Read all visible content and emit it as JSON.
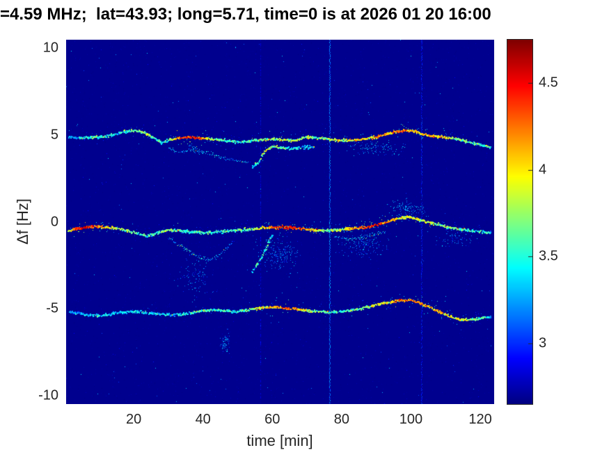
{
  "figure": {
    "title": "=4.59 MHz;  lat=43.93; long=5.71, time=0 is at 2026 01 20 16:00",
    "xlabel": "time [min]",
    "ylabel": "Δf [Hz]",
    "background": "#ffffff",
    "axis_text_color": "#262626"
  },
  "chart_data": {
    "type": "heatmap",
    "subtype": "doppler-spectrogram",
    "title": "=4.59 MHz;  lat=43.93; long=5.71, time=0 is at 2026 01 20 16:00",
    "xlabel": "time [min]",
    "ylabel": "Δf [Hz]",
    "colormap": "jet",
    "grid": false,
    "xlim": [
      0.5,
      124
    ],
    "ylim": [
      -10.5,
      10.5
    ],
    "xticks": [
      20,
      40,
      60,
      80,
      100,
      120
    ],
    "xtick_labels": [
      "20",
      "40",
      "60",
      "80",
      "100",
      "120"
    ],
    "yticks": [
      10,
      5,
      0,
      -5,
      -10
    ],
    "ytick_labels": [
      "10",
      "5",
      "0",
      "-5",
      "-10"
    ],
    "colorbar": {
      "clim": [
        2.65,
        4.75
      ],
      "ticks": [
        4.5,
        4,
        3.5,
        3
      ],
      "tick_labels": [
        "4.5",
        "4",
        "3.5",
        "3"
      ],
      "position": "right"
    },
    "background_value": 2.68,
    "traces": [
      {
        "name": "upper-main",
        "size": 2,
        "jitter": 0.07,
        "gap": 0.12,
        "points": [
          [
            1,
            4.9,
            3.3
          ],
          [
            4,
            4.85,
            3.4
          ],
          [
            8,
            4.9,
            3.5
          ],
          [
            12,
            4.95,
            3.5
          ],
          [
            15,
            5.1,
            3.4
          ],
          [
            18,
            5.25,
            3.6
          ],
          [
            20,
            5.3,
            3.5
          ],
          [
            23,
            5.15,
            3.8
          ],
          [
            26,
            4.85,
            3.6
          ],
          [
            28,
            4.55,
            3.5
          ],
          [
            30,
            4.75,
            3.6
          ],
          [
            33,
            4.85,
            4.2
          ],
          [
            36,
            4.9,
            4.5
          ],
          [
            39,
            4.85,
            4.3
          ],
          [
            42,
            4.8,
            3.8
          ],
          [
            45,
            4.75,
            3.6
          ],
          [
            48,
            4.65,
            3.5
          ],
          [
            51,
            4.6,
            3.6
          ],
          [
            54,
            4.7,
            3.7
          ],
          [
            57,
            4.75,
            3.8
          ],
          [
            60,
            4.8,
            3.7
          ],
          [
            63,
            4.75,
            3.9
          ],
          [
            66,
            4.7,
            3.7
          ],
          [
            70,
            4.9,
            3.8
          ],
          [
            74,
            4.85,
            3.7
          ],
          [
            78,
            4.75,
            3.8
          ],
          [
            82,
            4.7,
            3.9
          ],
          [
            85,
            4.75,
            4.1
          ],
          [
            88,
            4.85,
            4.0
          ],
          [
            91,
            4.95,
            4.2
          ],
          [
            94,
            5.15,
            4.1
          ],
          [
            97,
            5.25,
            4.3
          ],
          [
            100,
            5.3,
            4.1
          ],
          [
            103,
            5.1,
            4.0
          ],
          [
            106,
            4.95,
            4.2
          ],
          [
            109,
            4.9,
            4.0
          ],
          [
            112,
            4.85,
            3.8
          ],
          [
            115,
            4.7,
            3.7
          ],
          [
            118,
            4.55,
            3.6
          ],
          [
            121,
            4.4,
            3.5
          ],
          [
            123,
            4.3,
            3.4
          ]
        ]
      },
      {
        "name": "upper-branch-descending",
        "size": 1,
        "jitter": 0.1,
        "gap": 0.3,
        "points": [
          [
            36,
            4.45,
            3.2
          ],
          [
            39,
            4.15,
            3.3
          ],
          [
            42,
            3.95,
            3.4
          ],
          [
            45,
            3.75,
            3.3
          ],
          [
            48,
            3.6,
            3.2
          ],
          [
            51,
            3.5,
            3.3
          ],
          [
            53,
            3.4,
            3.2
          ]
        ]
      },
      {
        "name": "upper-branch-rising-arc",
        "size": 2,
        "jitter": 0.08,
        "gap": 0.22,
        "points": [
          [
            54,
            3.15,
            3.4
          ],
          [
            56,
            3.45,
            3.6
          ],
          [
            57,
            3.85,
            3.7
          ],
          [
            58,
            4.15,
            3.8
          ],
          [
            60,
            4.35,
            3.7
          ],
          [
            63,
            4.3,
            3.6
          ],
          [
            66,
            4.25,
            3.5
          ],
          [
            69,
            4.3,
            3.4
          ],
          [
            72,
            4.35,
            3.3
          ]
        ]
      },
      {
        "name": "upper-squiggle",
        "size": 1,
        "jitter": 0.1,
        "gap": 0.35,
        "points": [
          [
            30,
            4.3,
            3.2
          ],
          [
            32,
            4.1,
            3.3
          ],
          [
            34,
            4.0,
            3.2
          ],
          [
            36,
            4.2,
            3.3
          ],
          [
            38,
            4.05,
            3.2
          ],
          [
            40,
            3.95,
            3.3
          ]
        ]
      },
      {
        "name": "middle-main",
        "size": 2,
        "jitter": 0.08,
        "gap": 0.1,
        "points": [
          [
            1,
            -0.5,
            3.8
          ],
          [
            3,
            -0.4,
            4.4
          ],
          [
            6,
            -0.3,
            4.5
          ],
          [
            9,
            -0.25,
            4.3
          ],
          [
            12,
            -0.3,
            4.0
          ],
          [
            15,
            -0.35,
            3.8
          ],
          [
            18,
            -0.5,
            3.7
          ],
          [
            21,
            -0.65,
            3.6
          ],
          [
            24,
            -0.8,
            3.5
          ],
          [
            27,
            -0.6,
            3.6
          ],
          [
            30,
            -0.45,
            3.7
          ],
          [
            33,
            -0.5,
            3.6
          ],
          [
            36,
            -0.55,
            3.5
          ],
          [
            39,
            -0.6,
            3.6
          ],
          [
            42,
            -0.6,
            3.5
          ],
          [
            45,
            -0.55,
            3.5
          ],
          [
            48,
            -0.5,
            3.6
          ],
          [
            51,
            -0.45,
            3.6
          ],
          [
            54,
            -0.4,
            3.7
          ],
          [
            57,
            -0.35,
            3.9
          ],
          [
            60,
            -0.3,
            4.2
          ],
          [
            63,
            -0.3,
            4.5
          ],
          [
            66,
            -0.35,
            4.4
          ],
          [
            69,
            -0.4,
            4.2
          ],
          [
            72,
            -0.45,
            4.0
          ],
          [
            75,
            -0.5,
            3.8
          ],
          [
            78,
            -0.45,
            3.7
          ],
          [
            81,
            -0.4,
            3.9
          ],
          [
            84,
            -0.35,
            4.1
          ],
          [
            87,
            -0.3,
            4.4
          ],
          [
            90,
            -0.15,
            4.5
          ],
          [
            93,
            0.0,
            4.2
          ],
          [
            96,
            0.2,
            4.0
          ],
          [
            99,
            0.3,
            3.9
          ],
          [
            102,
            0.15,
            3.9
          ],
          [
            105,
            0.0,
            3.8
          ],
          [
            108,
            -0.15,
            3.7
          ],
          [
            111,
            -0.3,
            3.7
          ],
          [
            114,
            -0.4,
            3.6
          ],
          [
            117,
            -0.5,
            3.6
          ],
          [
            120,
            -0.55,
            3.5
          ],
          [
            123,
            -0.6,
            3.4
          ]
        ]
      },
      {
        "name": "middle-dip",
        "size": 1,
        "jitter": 0.12,
        "gap": 0.28,
        "points": [
          [
            30,
            -0.9,
            3.2
          ],
          [
            33,
            -1.3,
            3.3
          ],
          [
            36,
            -1.7,
            3.4
          ],
          [
            39,
            -2.05,
            3.3
          ],
          [
            42,
            -2.2,
            3.2
          ],
          [
            45,
            -1.85,
            3.3
          ],
          [
            47,
            -1.45,
            3.2
          ],
          [
            49,
            -1.1,
            3.1
          ]
        ]
      },
      {
        "name": "middle-rising-arc",
        "size": 2,
        "jitter": 0.1,
        "gap": 0.2,
        "points": [
          [
            54,
            -2.85,
            3.3
          ],
          [
            56,
            -2.35,
            3.5
          ],
          [
            58,
            -1.55,
            3.6
          ],
          [
            59,
            -1.05,
            3.5
          ],
          [
            60,
            -0.75,
            3.4
          ]
        ]
      },
      {
        "name": "middle-sub-line",
        "size": 1,
        "jitter": 0.1,
        "gap": 0.35,
        "points": [
          [
            78,
            -0.9,
            3.2
          ],
          [
            82,
            -1.0,
            3.3
          ],
          [
            86,
            -0.9,
            3.4
          ],
          [
            90,
            -0.7,
            3.3
          ],
          [
            93,
            -0.5,
            3.2
          ]
        ]
      },
      {
        "name": "lower-main",
        "size": 2,
        "jitter": 0.07,
        "gap": 0.16,
        "points": [
          [
            1,
            -5.15,
            3.2
          ],
          [
            4,
            -5.25,
            3.3
          ],
          [
            7,
            -5.35,
            3.3
          ],
          [
            10,
            -5.4,
            3.4
          ],
          [
            13,
            -5.3,
            3.3
          ],
          [
            16,
            -5.2,
            3.3
          ],
          [
            19,
            -5.15,
            3.3
          ],
          [
            22,
            -5.2,
            3.4
          ],
          [
            25,
            -5.25,
            3.3
          ],
          [
            28,
            -5.3,
            3.3
          ],
          [
            31,
            -5.35,
            3.3
          ],
          [
            34,
            -5.3,
            3.4
          ],
          [
            37,
            -5.2,
            3.5
          ],
          [
            40,
            -5.1,
            3.6
          ],
          [
            43,
            -5.05,
            3.5
          ],
          [
            46,
            -5.1,
            3.5
          ],
          [
            49,
            -5.15,
            3.5
          ],
          [
            52,
            -5.1,
            3.6
          ],
          [
            55,
            -5.0,
            3.8
          ],
          [
            58,
            -4.9,
            4.0
          ],
          [
            61,
            -4.9,
            4.2
          ],
          [
            64,
            -4.95,
            4.3
          ],
          [
            67,
            -5.0,
            4.1
          ],
          [
            70,
            -5.1,
            3.9
          ],
          [
            73,
            -5.15,
            3.7
          ],
          [
            76,
            -5.2,
            3.6
          ],
          [
            79,
            -5.15,
            3.5
          ],
          [
            82,
            -5.1,
            3.6
          ],
          [
            85,
            -5.0,
            3.7
          ],
          [
            88,
            -4.85,
            3.8
          ],
          [
            91,
            -4.7,
            3.9
          ],
          [
            94,
            -4.6,
            4.0
          ],
          [
            97,
            -4.5,
            4.2
          ],
          [
            100,
            -4.5,
            4.3
          ],
          [
            103,
            -4.7,
            4.2
          ],
          [
            106,
            -4.95,
            4.1
          ],
          [
            109,
            -5.25,
            4.0
          ],
          [
            112,
            -5.5,
            3.9
          ],
          [
            115,
            -5.65,
            3.8
          ],
          [
            118,
            -5.6,
            3.6
          ],
          [
            121,
            -5.5,
            3.5
          ],
          [
            123,
            -5.45,
            3.4
          ]
        ]
      }
    ],
    "clusters": [
      {
        "x": 62,
        "xs": 6,
        "y": -1.9,
        "ys": 0.9,
        "v": 2.95,
        "n": 200
      },
      {
        "x": 87,
        "xs": 6,
        "y": -1.3,
        "ys": 0.8,
        "v": 2.95,
        "n": 150
      },
      {
        "x": 99,
        "xs": 5,
        "y": 0.7,
        "ys": 0.5,
        "v": 3.0,
        "n": 120
      },
      {
        "x": 46.5,
        "xs": 1.5,
        "y": -6.9,
        "ys": 0.6,
        "v": 3.0,
        "n": 60
      },
      {
        "x": 38,
        "xs": 5,
        "y": -3.2,
        "ys": 1.2,
        "v": 2.9,
        "n": 100
      },
      {
        "x": 90,
        "xs": 8,
        "y": 4.25,
        "ys": 0.4,
        "v": 3.0,
        "n": 110
      },
      {
        "x": 113,
        "xs": 5,
        "y": -0.95,
        "ys": 0.5,
        "v": 2.95,
        "n": 70
      }
    ],
    "vertical_lines": [
      {
        "x": 76.5,
        "v": 3.15,
        "density": 0.95,
        "width": 2
      },
      {
        "x": 103,
        "v": 2.95,
        "density": 0.7,
        "width": 2
      },
      {
        "x": 56.5,
        "v": 2.85,
        "density": 0.5,
        "width": 1
      }
    ],
    "noise": {
      "count": 7000,
      "bright_count": 260
    }
  }
}
